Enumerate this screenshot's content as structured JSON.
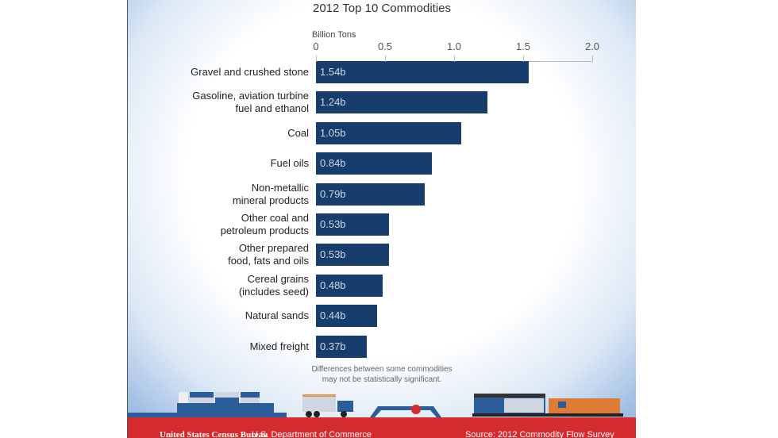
{
  "chart_data": {
    "type": "bar",
    "orientation": "horizontal",
    "title": "2012 Top 10 Commodities",
    "xlabel": "Billion Tons",
    "xlim": [
      0,
      2.0
    ],
    "ticks": [
      "0",
      "0.5",
      "1.0",
      "1.5",
      "2.0"
    ],
    "categories": [
      [
        "Gravel and crushed stone"
      ],
      [
        "Gasoline, aviation turbine",
        "fuel and ethanol"
      ],
      [
        "Coal"
      ],
      [
        "Fuel oils"
      ],
      [
        "Non-metallic",
        "mineral products"
      ],
      [
        "Other coal and",
        "petroleum products"
      ],
      [
        "Other prepared",
        "food, fats and oils"
      ],
      [
        "Cereal grains",
        "(includes seed)"
      ],
      [
        "Natural sands"
      ],
      [
        "Mixed freight"
      ]
    ],
    "values": [
      1.54,
      1.24,
      1.05,
      0.84,
      0.79,
      0.53,
      0.53,
      0.48,
      0.44,
      0.37
    ],
    "data_labels": [
      "1.54b",
      "1.24b",
      "1.05b",
      "0.84b",
      "0.79b",
      "0.53b",
      "0.53b",
      "0.48b",
      "0.44b",
      "0.37b"
    ],
    "bar_color": "#173d6d"
  },
  "note": [
    "Differences between some commodities",
    "may not be statistically significant."
  ],
  "footer": {
    "logo": "United States Census Bureau",
    "dept": "U.S. Department of Commerce",
    "source": "Source: 2012 Commodity Flow Survey"
  }
}
